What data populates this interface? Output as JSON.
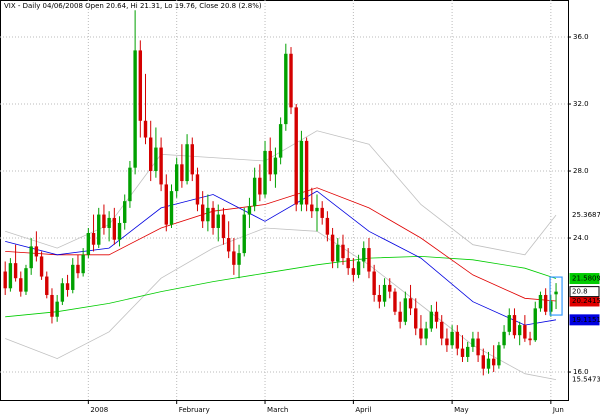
{
  "chart_data": {
    "type": "candlestick",
    "title": "VIX - Daily 04/06/2008 Open 20.64, Hi 21.31, Lo 19.76, Close 20.8 (2.8%)",
    "xlim": [
      -1,
      108.3
    ],
    "xticks": [
      {
        "value": 16,
        "label": "2008"
      },
      {
        "value": 33,
        "label": "February"
      },
      {
        "value": 50,
        "label": "March"
      },
      {
        "value": 67,
        "label": "April"
      },
      {
        "value": 86,
        "label": "May"
      },
      {
        "value": 105,
        "label": "Jun"
      }
    ],
    "ylim": [
      14.33,
      38.21
    ],
    "yticks": [
      {
        "value": 16,
        "label": "16.0"
      },
      {
        "value": 24,
        "label": "24.0"
      },
      {
        "value": 28,
        "label": "28.0"
      },
      {
        "value": 32,
        "label": "32.0"
      },
      {
        "value": 36,
        "label": "36.0"
      }
    ],
    "grid": true,
    "candles": {
      "up_color": "#00a000",
      "down_color": "#d40000",
      "open": [
        22.0,
        21.0,
        22.5,
        21.6,
        20.8,
        22.2,
        23.5,
        22.9,
        21.7,
        20.6,
        19.3,
        20.2,
        21.3,
        20.9,
        22.4,
        21.9,
        23.0,
        24.3,
        23.6,
        25.4,
        24.6,
        25.2,
        23.9,
        24.9,
        26.2,
        28.2,
        35.2,
        31.0,
        30.0,
        28.0,
        29.4,
        27.2,
        24.8,
        26.8,
        28.4,
        27.4,
        29.6,
        27.8,
        26.0,
        25.0,
        25.8,
        24.6,
        25.4,
        24.0,
        23.2,
        22.4,
        23.1,
        25.4,
        25.9,
        27.6,
        26.6,
        29.2,
        27.8,
        28.8,
        30.8,
        35.0,
        31.8,
        26.0,
        29.8,
        26.0,
        25.6,
        25.8,
        25.2,
        24.2,
        22.6,
        23.6,
        22.8,
        22.2,
        21.8,
        22.6,
        23.4,
        22.0,
        20.6,
        20.2,
        21.2,
        20.8,
        19.6,
        19.0,
        20.4,
        19.8,
        18.6,
        18.0,
        18.6,
        19.6,
        19.0,
        18.0,
        17.6,
        18.4,
        17.4,
        16.9,
        17.5,
        18.0,
        17.0,
        16.2,
        16.8,
        16.4,
        17.6,
        18.4,
        19.4,
        18.2,
        18.8,
        18.0,
        17.9,
        19.8,
        20.6,
        19.6,
        20.64
      ],
      "high": [
        22.6,
        22.8,
        23.6,
        22.0,
        22.4,
        24.0,
        24.4,
        23.2,
        22.0,
        21.0,
        20.6,
        21.6,
        21.8,
        22.8,
        23.0,
        23.4,
        24.6,
        25.4,
        25.8,
        26.0,
        25.6,
        25.8,
        25.3,
        26.6,
        28.6,
        37.6,
        35.8,
        33.8,
        31.0,
        30.6,
        30.0,
        27.8,
        27.2,
        28.8,
        29.6,
        30.2,
        30.0,
        28.2,
        26.8,
        26.6,
        26.2,
        26.0,
        25.8,
        25.0,
        24.0,
        23.6,
        25.8,
        26.4,
        28.2,
        28.4,
        29.8,
        30.0,
        29.4,
        31.2,
        35.6,
        35.4,
        32.0,
        30.4,
        30.0,
        27.0,
        26.6,
        26.2,
        25.6,
        24.6,
        24.0,
        24.2,
        23.4,
        22.8,
        23.0,
        23.8,
        24.0,
        22.4,
        21.2,
        21.6,
        21.6,
        21.0,
        20.2,
        20.8,
        21.2,
        20.4,
        19.4,
        19.0,
        20.0,
        20.2,
        19.4,
        18.6,
        18.8,
        18.8,
        18.2,
        17.8,
        18.4,
        18.4,
        17.4,
        17.2,
        17.6,
        17.8,
        18.8,
        19.8,
        19.8,
        19.0,
        19.4,
        18.4,
        20.2,
        20.8,
        21.0,
        20.6,
        21.31
      ],
      "low": [
        20.6,
        20.8,
        21.4,
        20.5,
        20.6,
        21.8,
        22.6,
        21.5,
        20.4,
        18.9,
        19.0,
        20.0,
        20.5,
        20.7,
        21.6,
        21.7,
        22.8,
        23.2,
        23.4,
        24.2,
        23.8,
        23.6,
        23.5,
        24.5,
        25.8,
        27.8,
        30.0,
        29.6,
        27.4,
        27.6,
        26.8,
        24.4,
        24.6,
        26.4,
        27.0,
        27.2,
        27.4,
        25.6,
        24.6,
        24.4,
        24.2,
        23.8,
        23.6,
        22.8,
        21.8,
        21.6,
        22.9,
        24.6,
        25.6,
        26.2,
        26.4,
        27.4,
        27.0,
        28.4,
        30.4,
        31.4,
        25.6,
        25.6,
        25.6,
        25.2,
        24.4,
        24.8,
        23.8,
        22.2,
        22.2,
        22.4,
        21.8,
        21.4,
        21.6,
        22.2,
        21.6,
        20.2,
        19.8,
        19.9,
        20.4,
        19.4,
        18.6,
        18.8,
        19.4,
        18.2,
        17.6,
        17.6,
        18.4,
        18.6,
        17.6,
        17.2,
        17.4,
        17.0,
        16.6,
        16.6,
        17.2,
        16.6,
        15.8,
        15.9,
        16.0,
        16.2,
        17.4,
        18.2,
        18.0,
        17.6,
        17.8,
        17.6,
        17.8,
        19.6,
        19.4,
        19.3,
        19.76
      ],
      "close": [
        21.0,
        22.5,
        21.6,
        20.8,
        22.2,
        23.5,
        22.9,
        21.7,
        20.6,
        19.3,
        20.2,
        21.3,
        20.9,
        22.4,
        21.9,
        23.0,
        24.3,
        23.6,
        25.4,
        24.6,
        25.2,
        23.9,
        24.9,
        26.2,
        28.2,
        35.2,
        31.0,
        30.0,
        28.0,
        29.4,
        27.2,
        24.8,
        26.8,
        28.4,
        27.4,
        29.6,
        27.8,
        26.0,
        25.0,
        25.8,
        24.6,
        25.4,
        24.0,
        23.2,
        22.4,
        23.1,
        25.4,
        25.9,
        27.6,
        26.6,
        29.2,
        27.8,
        28.8,
        30.8,
        35.0,
        31.8,
        26.0,
        29.8,
        26.0,
        25.6,
        25.8,
        25.2,
        24.2,
        22.6,
        23.6,
        22.8,
        22.2,
        21.8,
        22.6,
        23.4,
        22.0,
        20.6,
        20.2,
        21.2,
        20.8,
        19.6,
        19.0,
        20.4,
        19.8,
        18.6,
        18.0,
        18.6,
        19.6,
        19.0,
        18.0,
        17.6,
        18.4,
        17.4,
        16.9,
        17.5,
        18.0,
        17.0,
        16.2,
        16.8,
        16.4,
        17.6,
        18.4,
        19.4,
        18.2,
        18.8,
        18.0,
        17.9,
        19.8,
        20.6,
        19.6,
        20.23,
        20.8
      ]
    },
    "lines": [
      {
        "color": "#c0c0c0",
        "boxed": false,
        "x": [
          0,
          10,
          20,
          30,
          40,
          50,
          60,
          70,
          80,
          90,
          100,
          106
        ],
        "values": [
          24.4,
          23.4,
          24.8,
          29.0,
          28.8,
          28.6,
          30.4,
          29.6,
          26.0,
          23.6,
          23.0,
          25.3687
        ]
      },
      {
        "color": "#c0c0c0",
        "boxed": false,
        "x": [
          0,
          10,
          20,
          30,
          40,
          50,
          60,
          70,
          80,
          90,
          100,
          106
        ],
        "values": [
          18.0,
          16.8,
          18.4,
          21.6,
          23.4,
          24.6,
          24.4,
          22.4,
          20.0,
          17.6,
          15.9,
          15.5473
        ]
      },
      {
        "color": "#00cc00",
        "boxed": true,
        "x": [
          0,
          10,
          20,
          30,
          40,
          50,
          60,
          70,
          80,
          90,
          100,
          106
        ],
        "values": [
          19.3,
          19.6,
          20.1,
          20.8,
          21.4,
          21.9,
          22.4,
          22.8,
          22.9,
          22.7,
          22.2,
          21.5809
        ]
      },
      {
        "color": "#e00000",
        "boxed": true,
        "x": [
          0,
          10,
          20,
          30,
          40,
          50,
          60,
          70,
          80,
          90,
          100,
          106
        ],
        "values": [
          23.2,
          23.0,
          23.0,
          24.6,
          25.6,
          26.0,
          27.0,
          25.8,
          24.0,
          21.8,
          20.4,
          20.2415
        ]
      },
      {
        "color": "#0000e0",
        "boxed": true,
        "x": [
          0,
          10,
          20,
          30,
          40,
          50,
          60,
          70,
          80,
          90,
          100,
          106
        ],
        "values": [
          23.8,
          23.0,
          23.4,
          25.8,
          26.6,
          25.0,
          26.8,
          24.4,
          22.8,
          20.2,
          18.8,
          19.1151
        ]
      }
    ]
  }
}
